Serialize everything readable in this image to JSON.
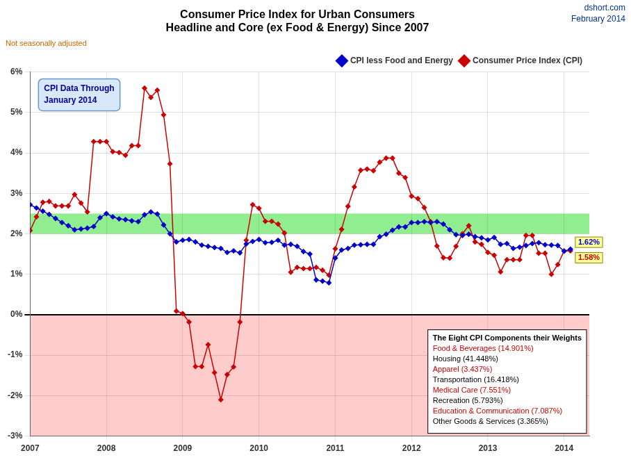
{
  "chart_data": {
    "type": "line",
    "title": [
      "Consumer Price Index for Urban Consumers",
      "Headline and Core (ex Food & Energy) Since 2007"
    ],
    "subtitle": "Not seasonally adjusted",
    "annotations": {
      "watermark": [
        "dshort.com",
        "February 2014"
      ],
      "note": [
        "CPI Data Through",
        "January 2014"
      ],
      "components_title": "The Eight CPI Components their Weights",
      "components": [
        {
          "text": "Food & Beverages (14.901%)",
          "color": "#CC0000"
        },
        {
          "text": "Housing (41.448%)",
          "color": "#000000"
        },
        {
          "text": "Apparel (3.437%)",
          "color": "#CC0000"
        },
        {
          "text": "Transportation (16.418%)",
          "color": "#000000"
        },
        {
          "text": "Medical Care (7.551%)",
          "color": "#CC0000"
        },
        {
          "text": "Recreation (5.793%)",
          "color": "#000000"
        },
        {
          "text": "Education & Communication (7.087%)",
          "color": "#CC0000"
        },
        {
          "text": "Other Goods & Services (3.365%)",
          "color": "#000000"
        }
      ]
    },
    "bands": [
      {
        "from": -3.0,
        "to": 0,
        "color": "#FFCCCC"
      },
      {
        "from": 2.0,
        "to": 2.5,
        "color": "#90EE90"
      }
    ],
    "x": [
      2007.0,
      2007.083,
      2007.167,
      2007.25,
      2007.333,
      2007.417,
      2007.5,
      2007.583,
      2007.667,
      2007.75,
      2007.833,
      2007.917,
      2008.0,
      2008.083,
      2008.167,
      2008.25,
      2008.333,
      2008.417,
      2008.5,
      2008.583,
      2008.667,
      2008.75,
      2008.833,
      2008.917,
      2009.0,
      2009.083,
      2009.167,
      2009.25,
      2009.333,
      2009.417,
      2009.5,
      2009.583,
      2009.667,
      2009.75,
      2009.833,
      2009.917,
      2010.0,
      2010.083,
      2010.167,
      2010.25,
      2010.333,
      2010.417,
      2010.5,
      2010.583,
      2010.667,
      2010.75,
      2010.833,
      2010.917,
      2011.0,
      2011.083,
      2011.167,
      2011.25,
      2011.333,
      2011.417,
      2011.5,
      2011.583,
      2011.667,
      2011.75,
      2011.833,
      2011.917,
      2012.0,
      2012.083,
      2012.167,
      2012.25,
      2012.333,
      2012.417,
      2012.5,
      2012.583,
      2012.667,
      2012.75,
      2012.833,
      2012.917,
      2013.0,
      2013.083,
      2013.167,
      2013.25,
      2013.333,
      2013.417,
      2013.5,
      2013.583,
      2013.667,
      2013.75,
      2013.833,
      2013.917,
      2014.0,
      2014.083
    ],
    "series": [
      {
        "name": "CPI less Food and Energy",
        "color": "#0000CC",
        "marker": "diamond",
        "values": [
          2.72,
          2.64,
          2.56,
          2.48,
          2.38,
          2.28,
          2.2,
          2.1,
          2.12,
          2.14,
          2.18,
          2.4,
          2.5,
          2.42,
          2.37,
          2.35,
          2.32,
          2.3,
          2.47,
          2.54,
          2.49,
          2.22,
          2.0,
          1.8,
          1.84,
          1.86,
          1.8,
          1.72,
          1.69,
          1.66,
          1.64,
          1.54,
          1.58,
          1.53,
          1.75,
          1.81,
          1.86,
          1.78,
          1.79,
          1.84,
          1.72,
          1.74,
          1.69,
          1.56,
          1.5,
          0.86,
          0.83,
          0.79,
          1.4,
          1.6,
          1.64,
          1.72,
          1.73,
          1.74,
          1.74,
          1.93,
          1.99,
          2.09,
          2.17,
          2.17,
          2.28,
          2.28,
          2.3,
          2.28,
          2.3,
          2.24,
          2.1,
          1.98,
          1.96,
          1.99,
          1.93,
          1.9,
          1.85,
          1.91,
          1.74,
          1.76,
          1.64,
          1.67,
          1.71,
          1.76,
          1.78,
          1.73,
          1.72,
          1.71,
          1.57,
          1.62
        ],
        "value_labels": [
          null,
          null,
          null,
          null,
          null,
          null,
          null,
          null,
          null,
          null,
          null,
          null,
          null,
          null,
          null,
          null,
          null,
          null,
          null,
          null,
          null,
          null,
          null,
          null,
          null,
          null,
          null,
          null,
          null,
          null,
          null,
          null,
          null,
          null,
          null,
          null,
          null,
          null,
          null,
          null,
          null,
          null,
          null,
          null,
          null,
          null,
          null,
          null,
          null,
          null,
          null,
          null,
          null,
          null,
          null,
          null,
          null,
          null,
          null,
          null,
          null,
          null,
          null,
          null,
          null,
          null,
          null,
          null,
          null,
          null,
          null,
          null,
          null,
          null,
          null,
          null,
          null,
          null,
          null,
          null,
          null,
          null,
          null,
          null,
          null,
          "1.62%"
        ]
      },
      {
        "name": "Consumer Price Index (CPI)",
        "color": "#CC0000",
        "marker": "diamond",
        "values": [
          2.08,
          2.42,
          2.78,
          2.8,
          2.69,
          2.69,
          2.69,
          2.97,
          2.76,
          2.54,
          4.28,
          4.28,
          4.28,
          4.03,
          4.01,
          3.94,
          4.18,
          4.18,
          5.6,
          5.37,
          5.55,
          4.94,
          3.73,
          0.09,
          0.03,
          -0.18,
          -1.28,
          -1.28,
          -0.74,
          -1.43,
          -2.1,
          -1.48,
          -1.29,
          -0.18,
          1.84,
          2.72,
          2.63,
          2.31,
          2.31,
          2.24,
          2.02,
          1.05,
          1.17,
          1.14,
          1.14,
          1.17,
          1.1,
          0.98,
          1.63,
          2.11,
          2.68,
          3.16,
          3.57,
          3.6,
          3.56,
          3.77,
          3.87,
          3.87,
          3.5,
          3.39,
          2.93,
          2.87,
          2.65,
          2.3,
          1.7,
          1.41,
          1.4,
          1.69,
          2.0,
          2.2,
          1.8,
          1.74,
          1.54,
          1.47,
          1.06,
          1.36,
          1.36,
          1.36,
          1.96,
          1.96,
          1.52,
          1.52,
          1.0,
          1.24,
          1.58,
          1.58
        ],
        "value_labels": [
          null,
          null,
          null,
          null,
          null,
          null,
          null,
          null,
          null,
          null,
          null,
          null,
          null,
          null,
          null,
          null,
          null,
          null,
          null,
          null,
          null,
          null,
          null,
          null,
          null,
          null,
          null,
          null,
          null,
          null,
          null,
          null,
          null,
          null,
          null,
          null,
          null,
          null,
          null,
          null,
          null,
          null,
          null,
          null,
          null,
          null,
          null,
          null,
          null,
          null,
          null,
          null,
          null,
          null,
          null,
          null,
          null,
          null,
          null,
          null,
          null,
          null,
          null,
          null,
          null,
          null,
          null,
          null,
          null,
          null,
          null,
          null,
          null,
          null,
          null,
          null,
          null,
          null,
          null,
          null,
          null,
          null,
          null,
          null,
          null,
          "1.58%"
        ]
      }
    ],
    "xlim": [
      2007.0,
      2014.33
    ],
    "xticks": [
      2007,
      2008,
      2009,
      2010,
      2011,
      2012,
      2013,
      2014
    ],
    "ylim": [
      -3.0,
      6.0
    ],
    "yticks": [
      {
        "value": -3,
        "label": "-3%"
      },
      {
        "value": -2,
        "label": "-2%"
      },
      {
        "value": -1,
        "label": "-1%"
      },
      {
        "value": 0,
        "label": "0%"
      },
      {
        "value": 1,
        "label": "1%"
      },
      {
        "value": 2,
        "label": "2%"
      },
      {
        "value": 3,
        "label": "3%"
      },
      {
        "value": 4,
        "label": "4%"
      },
      {
        "value": 5,
        "label": "5%"
      },
      {
        "value": 6,
        "label": "6%"
      }
    ],
    "grid": true,
    "legend": "upper right"
  }
}
